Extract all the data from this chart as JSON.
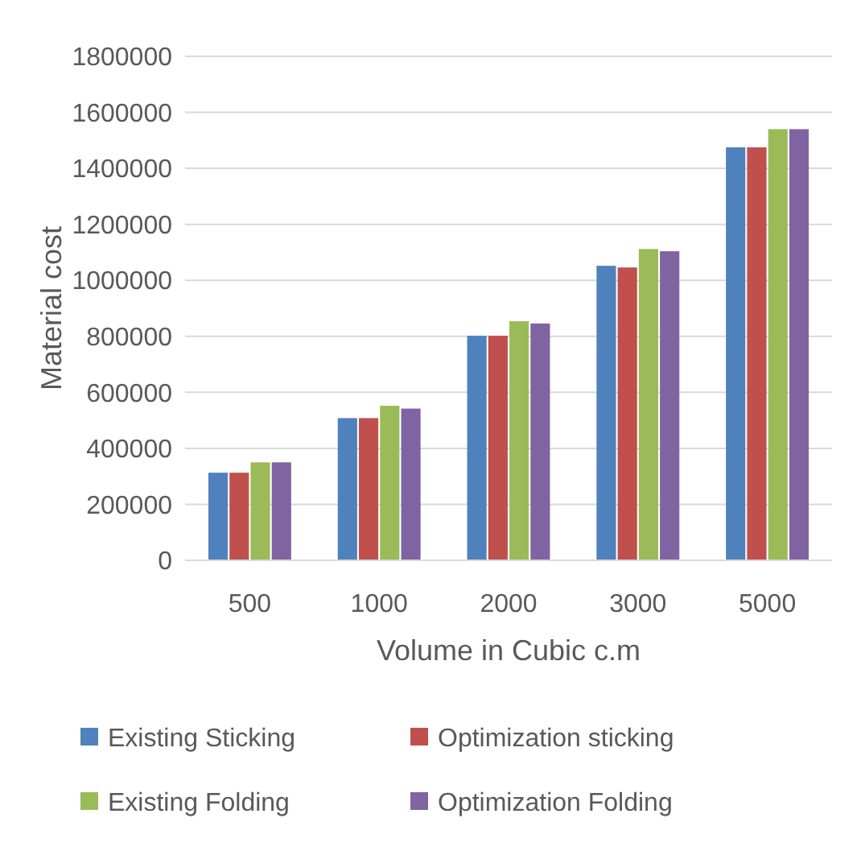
{
  "chart_data": {
    "type": "bar",
    "xlabel": "Volume in Cubic c.m",
    "ylabel": "Material cost",
    "categories": [
      "500",
      "1000",
      "2000",
      "3000",
      "5000"
    ],
    "series": [
      {
        "name": "Existing Sticking",
        "color": "#4f81bd",
        "values": [
          313000,
          508000,
          802000,
          1052000,
          1475000
        ]
      },
      {
        "name": "Optimization sticking",
        "color": "#c0504d",
        "values": [
          313000,
          508000,
          802000,
          1046000,
          1475000
        ]
      },
      {
        "name": "Existing Folding",
        "color": "#9bbb59",
        "values": [
          350000,
          552000,
          854000,
          1112000,
          1540000
        ]
      },
      {
        "name": "Optimization Folding",
        "color": "#8064a2",
        "values": [
          350000,
          542000,
          846000,
          1104000,
          1540000
        ]
      }
    ],
    "ylim": [
      0,
      1800000
    ],
    "yticks": [
      0,
      200000,
      400000,
      600000,
      800000,
      1000000,
      1200000,
      1400000,
      1600000,
      1800000
    ],
    "grid": "y",
    "legend": "bottom"
  }
}
